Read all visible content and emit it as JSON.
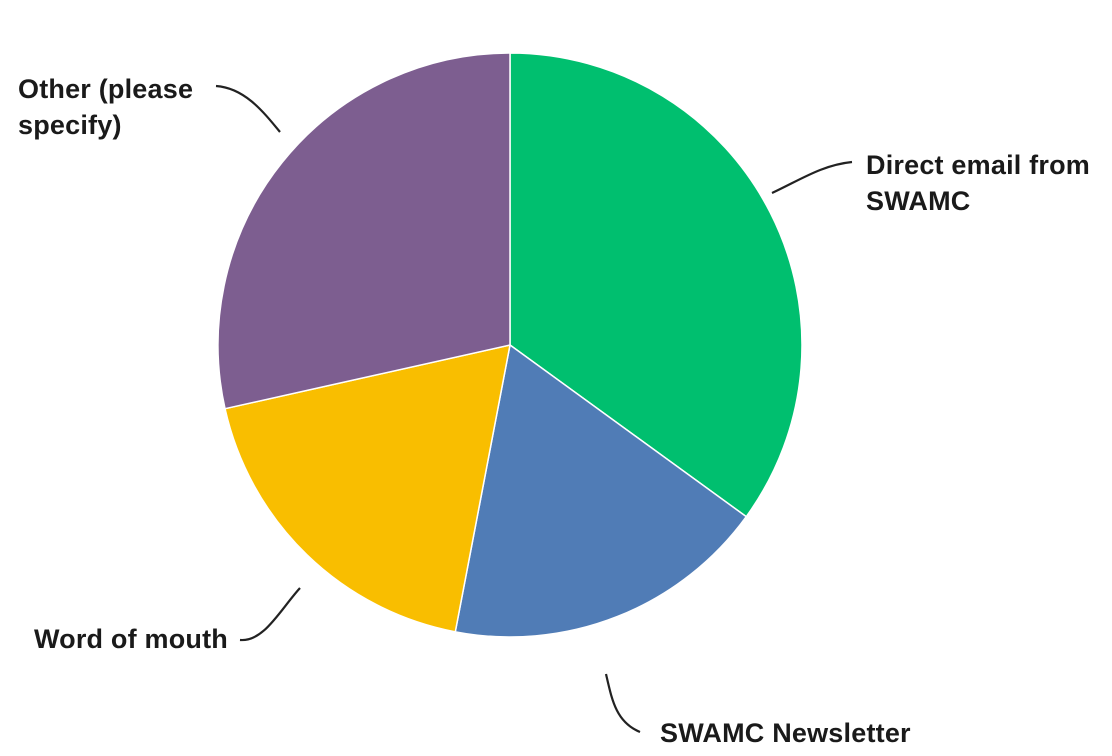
{
  "chart_data": {
    "type": "pie",
    "slices": [
      {
        "label_lines": [
          "Direct email from",
          "SWAMC"
        ],
        "value": 35.0,
        "color": "#00BF6F"
      },
      {
        "label_lines": [
          "SWAMC Newsletter"
        ],
        "value": 18.0,
        "color": "#507CB6"
      },
      {
        "label_lines": [
          "Word of mouth"
        ],
        "value": 18.5,
        "color": "#F9BE00"
      },
      {
        "label_lines": [
          "Other (please",
          "specify)"
        ],
        "value": 28.5,
        "color": "#7D5E90"
      }
    ],
    "start_angle_deg": 0,
    "direction": "clockwise",
    "legend": "none"
  }
}
